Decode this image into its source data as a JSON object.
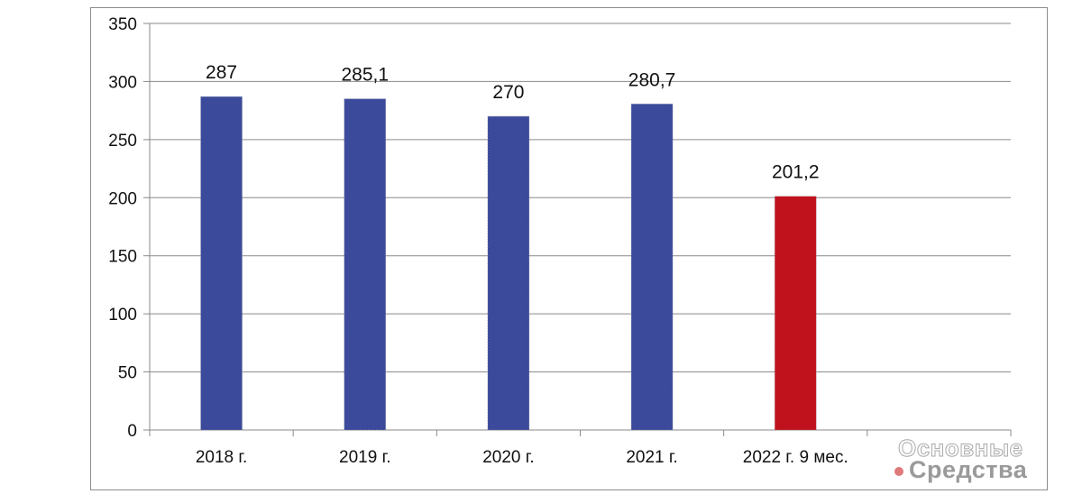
{
  "chart_data": {
    "type": "bar",
    "title": "",
    "xlabel": "",
    "ylabel": "",
    "categories": [
      "2018 г.",
      "2019 г.",
      "2020 г.",
      "2021 г.",
      "2022 г. 9 мес."
    ],
    "values": [
      287,
      285.1,
      270,
      280.7,
      201.2
    ],
    "value_labels": [
      "287",
      "285,1",
      "270",
      "280,7",
      "201,2"
    ],
    "bar_colors": [
      "#3b4a9a",
      "#3b4a9a",
      "#3b4a9a",
      "#3b4a9a",
      "#c0121c"
    ],
    "ylim": [
      0,
      350
    ],
    "yticks": [
      0,
      50,
      100,
      150,
      200,
      250,
      300,
      350
    ],
    "ytick_labels": [
      "0",
      "50",
      "100",
      "150",
      "200",
      "250",
      "300",
      "350"
    ],
    "grid": true,
    "empty_trailing_slots": 1
  },
  "watermark": {
    "line1": "Основные",
    "line2": "Средства"
  }
}
